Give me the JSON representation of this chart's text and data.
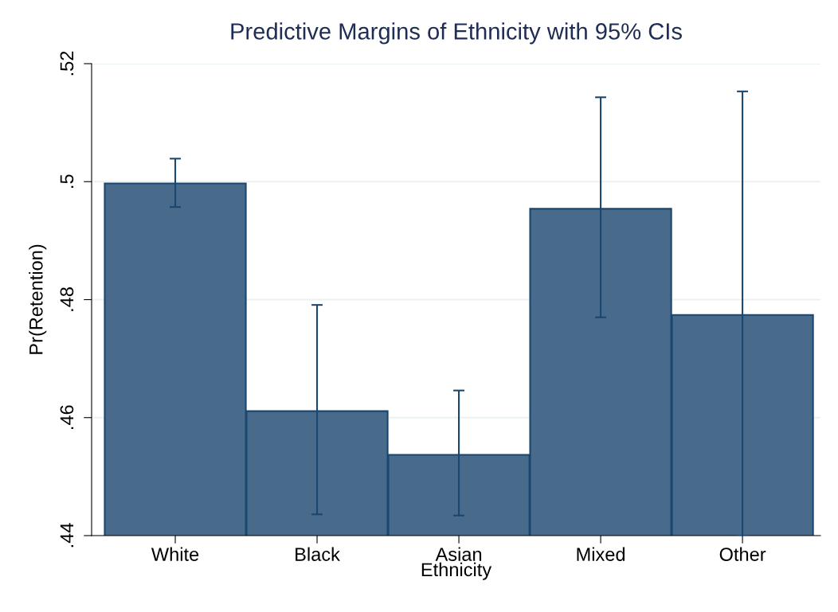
{
  "chart_data": {
    "type": "bar",
    "title": "Predictive Margins of Ethnicity with 95% CIs",
    "xlabel": "Ethnicity",
    "ylabel": "Pr(Retention)",
    "categories": [
      "White",
      "Black",
      "Asian",
      "Mixed",
      "Other"
    ],
    "values": [
      0.4997,
      0.4611,
      0.4537,
      0.4954,
      0.4774
    ],
    "errors": [
      [
        0.4957,
        0.5039
      ],
      [
        0.4436,
        0.4791
      ],
      [
        0.4434,
        0.4646
      ],
      [
        0.477,
        0.5143
      ],
      [
        0.44,
        0.5153
      ]
    ],
    "color": "#486b8c",
    "ylim": [
      0.44,
      0.52
    ],
    "yticks": [
      {
        "value": 0.44,
        "label": ".44"
      },
      {
        "value": 0.46,
        "label": ".46"
      },
      {
        "value": 0.48,
        "label": ".48"
      },
      {
        "value": 0.5,
        "label": ".5"
      },
      {
        "value": 0.52,
        "label": ".52"
      }
    ],
    "grid": "y"
  }
}
